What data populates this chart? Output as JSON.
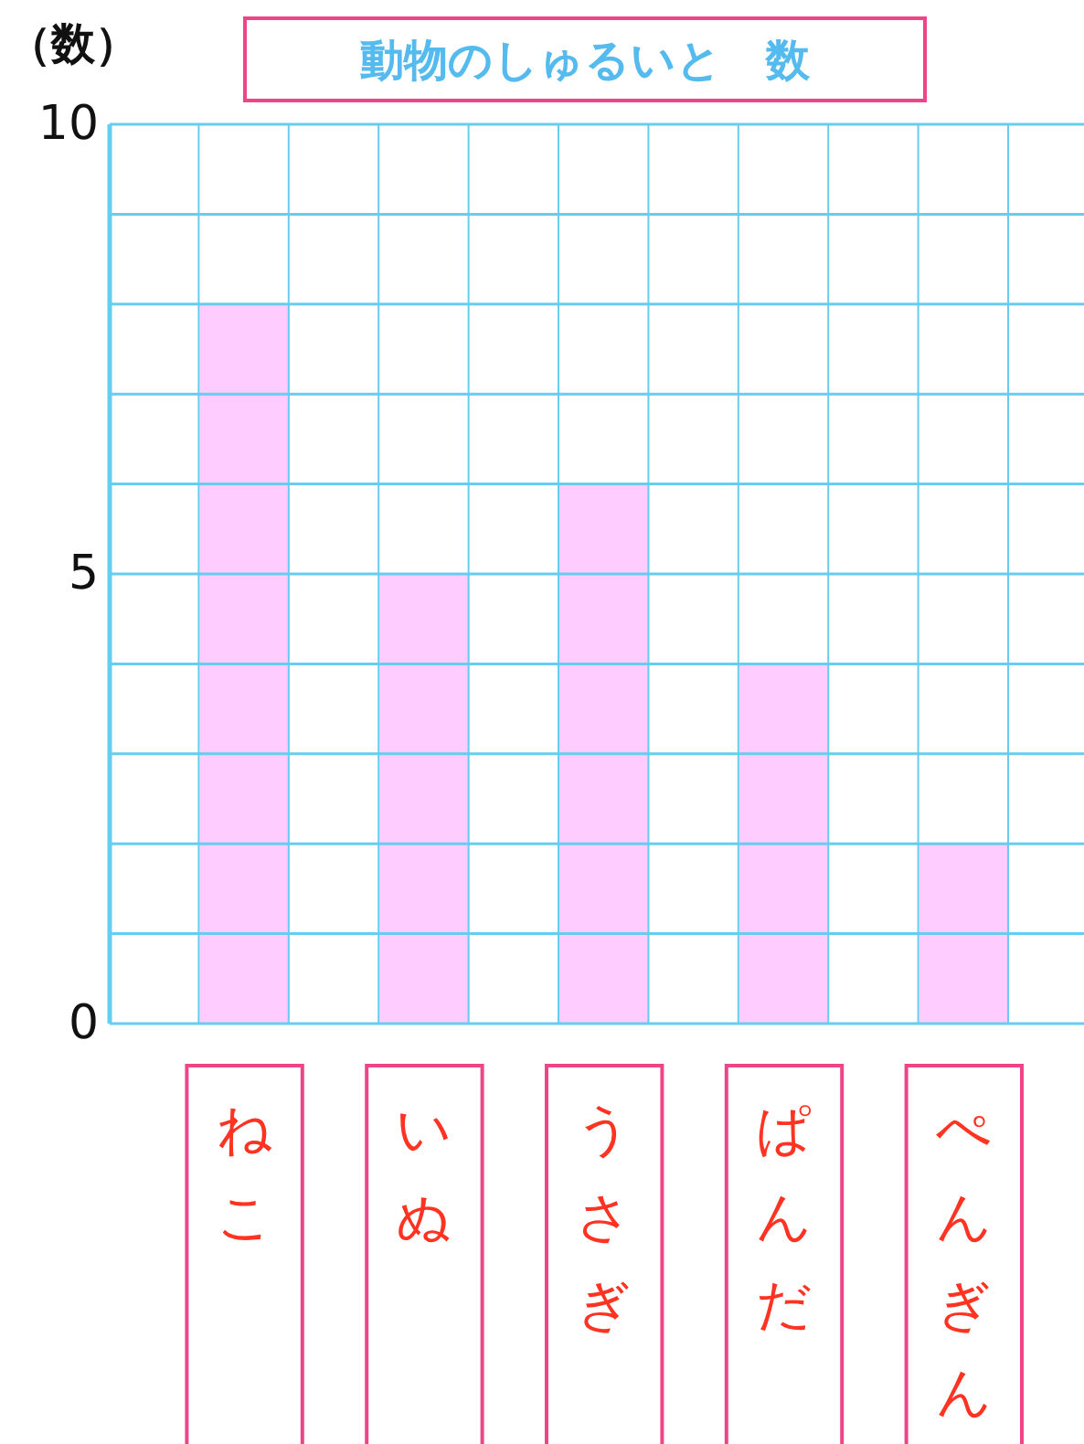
{
  "chart_data": {
    "type": "bar",
    "title": "動物のしゅるいと　数",
    "ylabel": "（数）",
    "categories": [
      "ねこ",
      "いぬ",
      "うさぎ",
      "ぱんだ",
      "ぺんぎん"
    ],
    "values": [
      8,
      5,
      6,
      4,
      2
    ],
    "color": "#ffccff",
    "ylim": [
      0,
      10
    ],
    "yticks": [
      0,
      {
        "value": 1,
        "label": null
      },
      {
        "value": 2,
        "label": null
      },
      {
        "value": 3,
        "label": null
      },
      {
        "value": 4,
        "label": null
      },
      5,
      {
        "value": 6,
        "label": null
      },
      {
        "value": 7,
        "label": null
      },
      {
        "value": 8,
        "label": null
      },
      {
        "value": 9,
        "label": null
      },
      10
    ],
    "grid": true
  }
}
